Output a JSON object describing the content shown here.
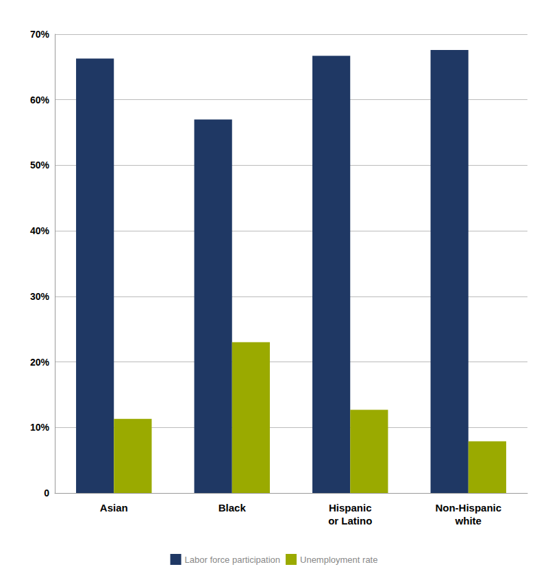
{
  "chart_data": {
    "type": "bar",
    "categories": [
      "Asian",
      "Black",
      "Hispanic\nor Latino",
      "Non-Hispanic\nwhite"
    ],
    "series": [
      {
        "name": "Labor force participation",
        "color": "#1f3864",
        "values": [
          66.3,
          57.0,
          66.7,
          67.6
        ]
      },
      {
        "name": "Unemployment rate",
        "color": "#9aaa00",
        "values": [
          11.3,
          23.0,
          12.7,
          7.9
        ]
      }
    ],
    "ylim": [
      0,
      70
    ],
    "yticks": [
      0,
      {
        "value": 10,
        "label": "10%"
      },
      {
        "value": 20,
        "label": "20%"
      },
      {
        "value": 30,
        "label": "30%"
      },
      {
        "value": 40,
        "label": "40%"
      },
      {
        "value": 50,
        "label": "50%"
      },
      {
        "value": 60,
        "label": "60%"
      },
      {
        "value": 70,
        "label": "70%"
      }
    ],
    "grid": true,
    "legend": "bottom"
  }
}
